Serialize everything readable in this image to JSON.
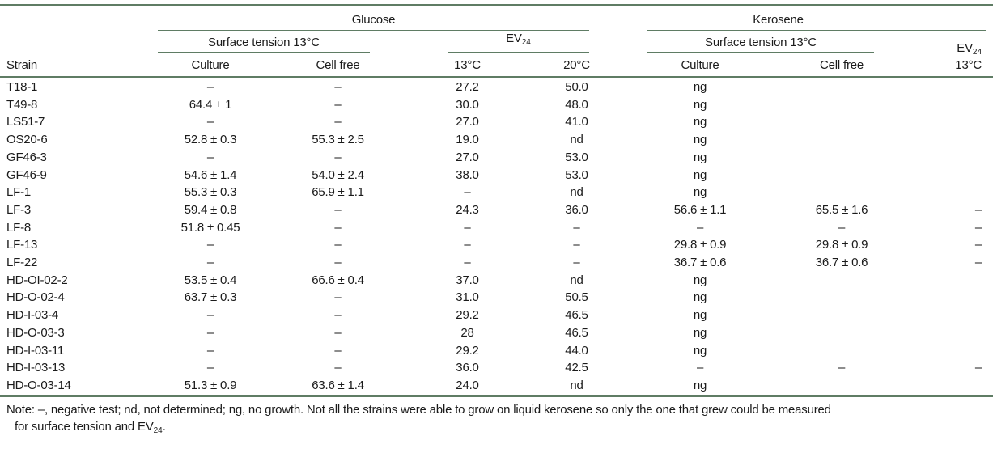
{
  "colors": {
    "rule_green": "#5f7c64",
    "text": "#1b1b1b"
  },
  "table": {
    "header": {
      "strain": "Strain",
      "glucose": "Glucose",
      "kerosene": "Kerosene",
      "surface_tension_glucose": "Surface tension 13°C",
      "surface_tension_kerosene": "Surface tension 13°C",
      "ev_label": "EV",
      "ev_sub": "24",
      "culture_glucose": "Culture",
      "cell_free_glucose": "Cell free",
      "ev_13c": "13°C",
      "ev_20c": "20°C",
      "culture_kerosene": "Culture",
      "cell_free_kerosene": "Cell free",
      "kerosene_ev_temp": "13°C"
    },
    "columns": [
      "strain",
      "glucose_culture",
      "glucose_cell_free",
      "glucose_ev24_13c",
      "glucose_ev24_20c",
      "kerosene_culture",
      "kerosene_cell_free",
      "kerosene_ev24_13c"
    ],
    "rows": [
      [
        "T18-1",
        "–",
        "–",
        "27.2",
        "50.0",
        "ng",
        "",
        ""
      ],
      [
        "T49-8",
        "64.4 ± 1",
        "–",
        "30.0",
        "48.0",
        "ng",
        "",
        ""
      ],
      [
        "LS51-7",
        "–",
        "–",
        "27.0",
        "41.0",
        "ng",
        "",
        ""
      ],
      [
        "OS20-6",
        "52.8 ± 0.3",
        "55.3 ± 2.5",
        "19.0",
        "nd",
        "ng",
        "",
        ""
      ],
      [
        "GF46-3",
        "–",
        "–",
        "27.0",
        "53.0",
        "ng",
        "",
        ""
      ],
      [
        "GF46-9",
        "54.6 ± 1.4",
        "54.0 ± 2.4",
        "38.0",
        "53.0",
        "ng",
        "",
        ""
      ],
      [
        "LF-1",
        "55.3 ± 0.3",
        "65.9 ± 1.1",
        "–",
        "nd",
        "ng",
        "",
        ""
      ],
      [
        "LF-3",
        "59.4 ± 0.8",
        "–",
        "24.3",
        "36.0",
        "56.6 ± 1.1",
        "65.5 ± 1.6",
        "–"
      ],
      [
        "LF-8",
        "51.8 ± 0.45",
        "–",
        "–",
        "–",
        "–",
        "–",
        "–"
      ],
      [
        "LF-13",
        "–",
        "–",
        "–",
        "–",
        "29.8 ± 0.9",
        "29.8 ± 0.9",
        "–"
      ],
      [
        "LF-22",
        "–",
        "–",
        "–",
        "–",
        "36.7 ± 0.6",
        "36.7 ± 0.6",
        "–"
      ],
      [
        "HD-OI-02-2",
        "53.5 ± 0.4",
        "66.6 ± 0.4",
        "37.0",
        "nd",
        "ng",
        "",
        ""
      ],
      [
        "HD-O-02-4",
        "63.7 ± 0.3",
        "–",
        "31.0",
        "50.5",
        "ng",
        "",
        ""
      ],
      [
        "HD-I-03-4",
        "–",
        "–",
        "29.2",
        "46.5",
        "ng",
        "",
        ""
      ],
      [
        "HD-O-03-3",
        "–",
        "–",
        "28",
        "46.5",
        "ng",
        "",
        ""
      ],
      [
        "HD-I-03-11",
        "–",
        "–",
        "29.2",
        "44.0",
        "ng",
        "",
        ""
      ],
      [
        "HD-I-03-13",
        "–",
        "–",
        "36.0",
        "42.5",
        "–",
        "–",
        "–"
      ],
      [
        "HD-O-03-14",
        "51.3 ± 0.9",
        "63.6 ± 1.4",
        "24.0",
        "nd",
        "ng",
        "",
        ""
      ]
    ],
    "note": {
      "line1": "Note: –, negative test; nd, not determined; ng, no growth. Not all the strains were able to grow on liquid kerosene so only the one that grew could be measured",
      "line2_prefix": "for surface tension and EV",
      "line2_sub": "24",
      "line2_suffix": "."
    }
  }
}
